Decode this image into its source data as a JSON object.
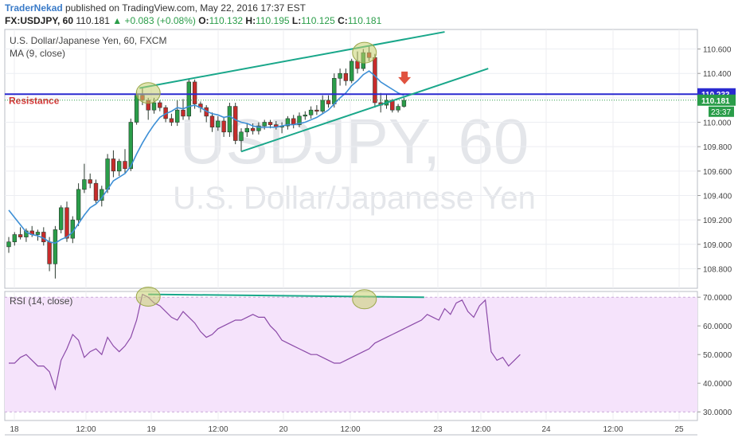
{
  "header": {
    "author": "TraderNekad",
    "published": "published on TradingView.com, May 22, 2016 17:37 EST",
    "symbol": "FX:USDJPY, 60",
    "last": "110.181",
    "change_arrow": "▲",
    "change": "+0.083 (+0.08%)",
    "open_label": "O:",
    "open": "110.132",
    "high_label": "H:",
    "high": "110.195",
    "low_label": "L:",
    "low": "110.125",
    "close_label": "C:",
    "close": "110.181"
  },
  "chart_data": [
    {
      "type": "candlestick",
      "title": "U.S. Dollar/Japanese Yen, 60, FXCM",
      "indicator": "MA (9, close)",
      "watermark_symbol": "USDJPY, 60",
      "watermark_name": "U.S. Dollar/Japanese Yen",
      "ylim": [
        108.64,
        110.76
      ],
      "y_ticks": [
        "110.600",
        "110.400",
        "110.200",
        "110.000",
        "109.800",
        "109.600",
        "109.400",
        "109.200",
        "109.000",
        "108.800"
      ],
      "x_ticks": [
        "18",
        "12:00",
        "19",
        "12:00",
        "20",
        "12:00",
        "23",
        "12:00",
        "24",
        "12:00",
        "25"
      ],
      "candles": [
        {
          "o": 108.98,
          "h": 109.06,
          "l": 108.93,
          "c": 109.02
        },
        {
          "o": 109.02,
          "h": 109.1,
          "l": 108.99,
          "c": 109.08
        },
        {
          "o": 109.08,
          "h": 109.14,
          "l": 109.04,
          "c": 109.06
        },
        {
          "o": 109.06,
          "h": 109.13,
          "l": 109.02,
          "c": 109.11
        },
        {
          "o": 109.11,
          "h": 109.15,
          "l": 109.06,
          "c": 109.08
        },
        {
          "o": 109.08,
          "h": 109.12,
          "l": 109.03,
          "c": 109.1
        },
        {
          "o": 109.1,
          "h": 109.14,
          "l": 108.99,
          "c": 109.02
        },
        {
          "o": 109.02,
          "h": 109.06,
          "l": 108.78,
          "c": 108.84
        },
        {
          "o": 108.84,
          "h": 109.15,
          "l": 108.72,
          "c": 109.12
        },
        {
          "o": 109.12,
          "h": 109.32,
          "l": 109.09,
          "c": 109.3
        },
        {
          "o": 109.3,
          "h": 109.35,
          "l": 109.02,
          "c": 109.05
        },
        {
          "o": 109.05,
          "h": 109.23,
          "l": 109.01,
          "c": 109.2
        },
        {
          "o": 109.2,
          "h": 109.5,
          "l": 109.15,
          "c": 109.45
        },
        {
          "o": 109.45,
          "h": 109.66,
          "l": 109.42,
          "c": 109.53
        },
        {
          "o": 109.53,
          "h": 109.58,
          "l": 109.46,
          "c": 109.5
        },
        {
          "o": 109.5,
          "h": 109.53,
          "l": 109.34,
          "c": 109.36
        },
        {
          "o": 109.36,
          "h": 109.48,
          "l": 109.31,
          "c": 109.45
        },
        {
          "o": 109.45,
          "h": 109.74,
          "l": 109.42,
          "c": 109.7
        },
        {
          "o": 109.7,
          "h": 109.77,
          "l": 109.55,
          "c": 109.6
        },
        {
          "o": 109.6,
          "h": 109.7,
          "l": 109.56,
          "c": 109.68
        },
        {
          "o": 109.68,
          "h": 109.78,
          "l": 109.58,
          "c": 109.62
        },
        {
          "o": 109.62,
          "h": 110.03,
          "l": 109.6,
          "c": 110.0
        },
        {
          "o": 110.0,
          "h": 110.26,
          "l": 109.98,
          "c": 110.22
        },
        {
          "o": 110.22,
          "h": 110.28,
          "l": 110.14,
          "c": 110.18
        },
        {
          "o": 110.18,
          "h": 110.2,
          "l": 110.02,
          "c": 110.1
        },
        {
          "o": 110.1,
          "h": 110.2,
          "l": 110.07,
          "c": 110.16
        },
        {
          "o": 110.16,
          "h": 110.18,
          "l": 110.09,
          "c": 110.12
        },
        {
          "o": 110.12,
          "h": 110.14,
          "l": 110.0,
          "c": 110.03
        },
        {
          "o": 110.03,
          "h": 110.07,
          "l": 109.97,
          "c": 110.0
        },
        {
          "o": 110.0,
          "h": 110.18,
          "l": 109.97,
          "c": 110.1
        },
        {
          "o": 110.1,
          "h": 110.19,
          "l": 110.02,
          "c": 110.05
        },
        {
          "o": 110.05,
          "h": 110.36,
          "l": 110.02,
          "c": 110.33
        },
        {
          "o": 110.33,
          "h": 110.35,
          "l": 110.11,
          "c": 110.15
        },
        {
          "o": 110.15,
          "h": 110.17,
          "l": 110.08,
          "c": 110.12
        },
        {
          "o": 110.12,
          "h": 110.14,
          "l": 110.0,
          "c": 110.05
        },
        {
          "o": 110.05,
          "h": 110.08,
          "l": 109.92,
          "c": 109.96
        },
        {
          "o": 109.96,
          "h": 110.05,
          "l": 109.93,
          "c": 110.01
        },
        {
          "o": 110.01,
          "h": 110.04,
          "l": 109.88,
          "c": 109.92
        },
        {
          "o": 109.92,
          "h": 110.16,
          "l": 109.88,
          "c": 110.13
        },
        {
          "o": 110.13,
          "h": 110.16,
          "l": 109.82,
          "c": 109.85
        },
        {
          "o": 109.85,
          "h": 109.95,
          "l": 109.76,
          "c": 109.92
        },
        {
          "o": 109.92,
          "h": 109.99,
          "l": 109.88,
          "c": 109.95
        },
        {
          "o": 109.95,
          "h": 109.99,
          "l": 109.9,
          "c": 109.93
        },
        {
          "o": 109.93,
          "h": 110.0,
          "l": 109.9,
          "c": 109.97
        },
        {
          "o": 109.97,
          "h": 110.02,
          "l": 109.94,
          "c": 110.0
        },
        {
          "o": 110.0,
          "h": 110.02,
          "l": 109.95,
          "c": 109.98
        },
        {
          "o": 109.98,
          "h": 110.01,
          "l": 109.94,
          "c": 109.96
        },
        {
          "o": 109.96,
          "h": 110.0,
          "l": 109.91,
          "c": 109.97
        },
        {
          "o": 109.97,
          "h": 110.05,
          "l": 109.94,
          "c": 110.03
        },
        {
          "o": 110.03,
          "h": 110.06,
          "l": 109.95,
          "c": 109.98
        },
        {
          "o": 109.98,
          "h": 110.08,
          "l": 109.96,
          "c": 110.05
        },
        {
          "o": 110.05,
          "h": 110.09,
          "l": 110.02,
          "c": 110.06
        },
        {
          "o": 110.06,
          "h": 110.13,
          "l": 110.03,
          "c": 110.1
        },
        {
          "o": 110.1,
          "h": 110.14,
          "l": 110.06,
          "c": 110.09
        },
        {
          "o": 110.09,
          "h": 110.22,
          "l": 110.07,
          "c": 110.18
        },
        {
          "o": 110.18,
          "h": 110.22,
          "l": 110.12,
          "c": 110.15
        },
        {
          "o": 110.15,
          "h": 110.4,
          "l": 110.12,
          "c": 110.36
        },
        {
          "o": 110.36,
          "h": 110.44,
          "l": 110.3,
          "c": 110.4
        },
        {
          "o": 110.4,
          "h": 110.44,
          "l": 110.3,
          "c": 110.34
        },
        {
          "o": 110.34,
          "h": 110.52,
          "l": 110.32,
          "c": 110.5
        },
        {
          "o": 110.5,
          "h": 110.58,
          "l": 110.4,
          "c": 110.44
        },
        {
          "o": 110.44,
          "h": 110.6,
          "l": 110.42,
          "c": 110.57
        },
        {
          "o": 110.57,
          "h": 110.62,
          "l": 110.5,
          "c": 110.53
        },
        {
          "o": 110.53,
          "h": 110.56,
          "l": 110.12,
          "c": 110.16
        },
        {
          "o": 110.16,
          "h": 110.24,
          "l": 110.08,
          "c": 110.14
        },
        {
          "o": 110.14,
          "h": 110.23,
          "l": 110.11,
          "c": 110.18
        },
        {
          "o": 110.18,
          "h": 110.19,
          "l": 110.08,
          "c": 110.1
        },
        {
          "o": 110.1,
          "h": 110.15,
          "l": 110.08,
          "c": 110.13
        },
        {
          "o": 110.13,
          "h": 110.2,
          "l": 110.12,
          "c": 110.18
        }
      ],
      "ma9": [
        109.28,
        109.22,
        109.16,
        109.1,
        109.08,
        109.07,
        109.05,
        109.02,
        109.01,
        109.04,
        109.06,
        109.1,
        109.17,
        109.24,
        109.3,
        109.33,
        109.38,
        109.45,
        109.52,
        109.55,
        109.58,
        109.64,
        109.74,
        109.83,
        109.91,
        109.98,
        110.04,
        110.07,
        110.09,
        110.12,
        110.11,
        110.13,
        110.14,
        110.12,
        110.09,
        110.07,
        110.06,
        110.04,
        110.05,
        110.02,
        110.0,
        109.99,
        109.97,
        109.96,
        109.96,
        109.96,
        109.96,
        109.97,
        109.98,
        109.98,
        109.99,
        110.0,
        110.02,
        110.04,
        110.07,
        110.1,
        110.15,
        110.2,
        110.24,
        110.3,
        110.34,
        110.39,
        110.42,
        110.38,
        110.33,
        110.3,
        110.27,
        110.24,
        110.22
      ],
      "price_labels": [
        {
          "value": 110.233,
          "text": "110.233",
          "color": "#2a2ad0"
        },
        {
          "value": 110.181,
          "text": "110.181",
          "color": "#2a9d49"
        }
      ],
      "countdown": "23:37",
      "resistance": {
        "value": 110.23,
        "label": "Resistance"
      },
      "trendlines": [
        {
          "from": [
            22.5,
            110.28
          ],
          "to": [
            75,
            110.74
          ]
        },
        {
          "from": [
            40,
            109.76
          ],
          "to": [
            82.5,
            110.44
          ]
        }
      ],
      "circles": [
        {
          "x": 24,
          "y": 110.24
        },
        {
          "x": 61.2,
          "y": 110.57
        }
      ],
      "down_arrow": {
        "x": 68.1,
        "y": 110.35
      },
      "colors": {
        "up": "#2a9d49",
        "down": "#c72b2b",
        "ma": "#3d8fd6",
        "trend": "#19a78a",
        "resistance": "#2a2ad0",
        "circle": "#c7cf6e"
      }
    },
    {
      "type": "line",
      "title": "RSI (14, close)",
      "ylim": [
        27,
        72
      ],
      "y_ticks": [
        "70.0000",
        "60.0000",
        "50.0000",
        "40.0000",
        "30.0000"
      ],
      "band": [
        30,
        70
      ],
      "values": [
        47,
        47,
        49,
        50,
        48,
        46,
        46,
        44,
        38,
        48,
        52,
        57,
        55,
        49,
        51,
        52,
        50,
        56,
        53,
        51,
        53,
        56,
        62,
        71,
        70,
        68,
        67,
        65,
        63,
        62,
        65,
        63,
        61,
        58,
        56,
        57,
        59,
        60,
        61,
        62,
        62,
        63,
        64,
        63,
        63,
        60,
        58,
        55,
        54,
        53,
        52,
        51,
        50,
        50,
        49,
        48,
        47,
        47,
        48,
        49,
        50,
        51,
        52,
        54,
        55,
        56,
        57,
        58,
        59,
        60,
        61,
        62,
        64,
        63,
        62,
        66,
        64,
        68,
        69,
        65,
        63,
        67,
        69,
        51,
        48,
        49,
        46,
        48,
        50
      ],
      "divergence_line": {
        "from": [
          24,
          71
        ],
        "to": [
          66,
          70
        ]
      },
      "circles": [
        {
          "x": 24,
          "y": 70.2
        },
        {
          "x": 61.2,
          "y": 69.3
        }
      ],
      "color": "#8b4aa8"
    }
  ]
}
